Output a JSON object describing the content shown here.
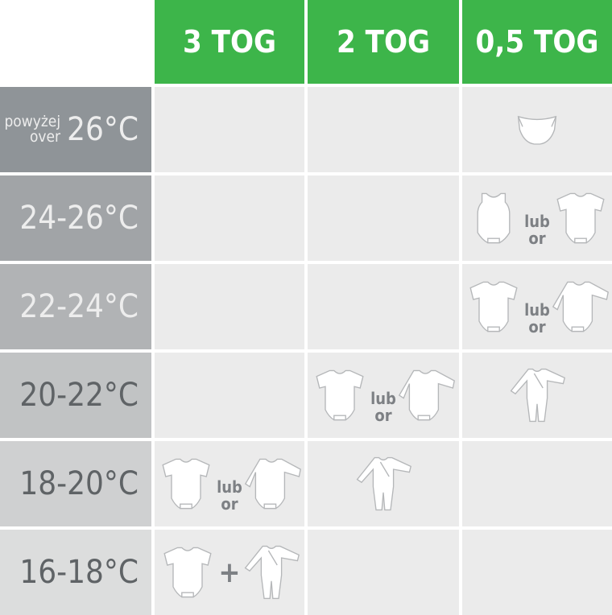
{
  "colors": {
    "header": "#3db54a",
    "cell": "#ebebeb",
    "connector": "#7d8084"
  },
  "columns": [
    "3 TOG",
    "2 TOG",
    "0,5 TOG"
  ],
  "connectors": {
    "or_pl": "lub",
    "or_en": "or",
    "plus": "+"
  },
  "rows": [
    {
      "prefix_pl": "powyżej",
      "prefix_en": "over",
      "label": "26°C",
      "bg": "#8f9498",
      "fg": "#ededed",
      "cells": [
        [],
        [],
        [
          {
            "icon": "nappy-icon"
          }
        ]
      ]
    },
    {
      "label": "24-26°C",
      "bg": "#a1a4a7",
      "fg": "#ededed",
      "cells": [
        [],
        [],
        [
          {
            "icon": "sleeveless-bodysuit-icon"
          },
          {
            "conn": "or"
          },
          {
            "icon": "short-sleeve-bodysuit-icon"
          }
        ]
      ]
    },
    {
      "label": "22-24°C",
      "bg": "#b1b3b5",
      "fg": "#ededed",
      "cells": [
        [],
        [],
        [
          {
            "icon": "short-sleeve-bodysuit-icon"
          },
          {
            "conn": "or"
          },
          {
            "icon": "long-sleeve-bodysuit-icon"
          }
        ]
      ]
    },
    {
      "label": "20-22°C",
      "bg": "#c1c3c4",
      "fg": "#5f6366",
      "cells": [
        [],
        [
          {
            "icon": "short-sleeve-bodysuit-icon"
          },
          {
            "conn": "or"
          },
          {
            "icon": "long-sleeve-bodysuit-icon"
          }
        ],
        [
          {
            "icon": "sleepsuit-icon"
          }
        ]
      ]
    },
    {
      "label": "18-20°C",
      "bg": "#cfd0d1",
      "fg": "#5f6366",
      "cells": [
        [
          {
            "icon": "short-sleeve-bodysuit-icon"
          },
          {
            "conn": "or"
          },
          {
            "icon": "long-sleeve-bodysuit-icon"
          }
        ],
        [
          {
            "icon": "sleepsuit-icon"
          }
        ],
        []
      ]
    },
    {
      "label": "16-18°C",
      "bg": "#dcdddd",
      "fg": "#5f6366",
      "cells": [
        [
          {
            "icon": "short-sleeve-bodysuit-icon"
          },
          {
            "conn": "plus"
          },
          {
            "icon": "sleepsuit-icon"
          }
        ],
        [],
        []
      ]
    }
  ]
}
